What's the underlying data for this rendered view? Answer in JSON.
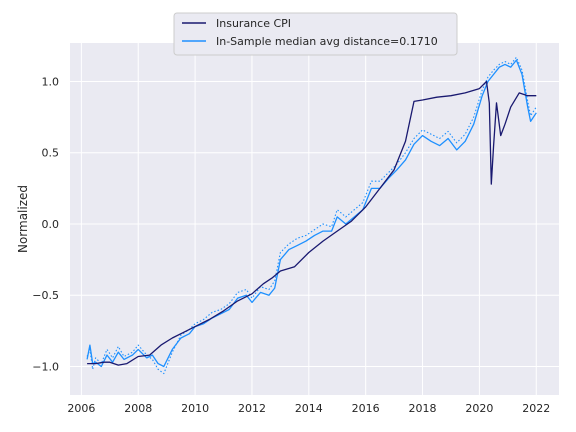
{
  "chart_data": {
    "type": "line",
    "title": "",
    "xlabel": "",
    "ylabel": "Normalized",
    "xlim": [
      2005.6,
      2022.8
    ],
    "ylim": [
      -1.2,
      1.27
    ],
    "x_ticks": [
      2006,
      2008,
      2010,
      2012,
      2014,
      2016,
      2018,
      2020,
      2022
    ],
    "x_tick_labels": [
      "2006",
      "2008",
      "2010",
      "2012",
      "2014",
      "2016",
      "2018",
      "2020",
      "2022"
    ],
    "y_ticks": [
      -1.0,
      -0.5,
      0.0,
      0.5,
      1.0
    ],
    "y_tick_labels": [
      "−1.0",
      "−0.5",
      "0.0",
      "0.5",
      "1.0"
    ],
    "grid": true,
    "legend_position": "top-center",
    "series": [
      {
        "name": "Insurance CPI",
        "color": "#191970",
        "style": "solid",
        "x": [
          2006.2,
          2006.5,
          2006.8,
          2007.0,
          2007.3,
          2007.6,
          2008.0,
          2008.4,
          2008.8,
          2009.2,
          2009.6,
          2010.0,
          2010.5,
          2011.0,
          2011.5,
          2012.0,
          2012.4,
          2012.7,
          2013.0,
          2013.5,
          2014.0,
          2014.5,
          2015.0,
          2015.5,
          2016.0,
          2016.5,
          2017.0,
          2017.4,
          2017.7,
          2018.0,
          2018.5,
          2019.0,
          2019.5,
          2020.0,
          2020.25,
          2020.35,
          2020.42,
          2020.5,
          2020.6,
          2020.75,
          2020.9,
          2021.1,
          2021.4,
          2021.7,
          2022.0
        ],
        "y": [
          -0.98,
          -0.98,
          -0.97,
          -0.97,
          -0.99,
          -0.98,
          -0.93,
          -0.92,
          -0.85,
          -0.8,
          -0.76,
          -0.72,
          -0.67,
          -0.61,
          -0.54,
          -0.49,
          -0.42,
          -0.38,
          -0.33,
          -0.3,
          -0.2,
          -0.12,
          -0.05,
          0.02,
          0.12,
          0.25,
          0.38,
          0.58,
          0.86,
          0.87,
          0.89,
          0.9,
          0.92,
          0.95,
          1.0,
          0.85,
          0.28,
          0.55,
          0.85,
          0.62,
          0.7,
          0.82,
          0.92,
          0.9,
          0.9
        ]
      },
      {
        "name": "In-Sample median avg distance=0.1710",
        "color": "#1e90ff",
        "style": "solid",
        "x": [
          2006.2,
          2006.3,
          2006.4,
          2006.5,
          2006.7,
          2006.9,
          2007.1,
          2007.3,
          2007.5,
          2007.8,
          2008.0,
          2008.3,
          2008.5,
          2008.7,
          2008.9,
          2009.2,
          2009.5,
          2009.8,
          2010.0,
          2010.3,
          2010.6,
          2010.9,
          2011.2,
          2011.5,
          2011.8,
          2012.0,
          2012.3,
          2012.6,
          2012.8,
          2013.0,
          2013.3,
          2013.6,
          2013.9,
          2014.2,
          2014.5,
          2014.8,
          2015.0,
          2015.3,
          2015.6,
          2015.9,
          2016.2,
          2016.5,
          2016.8,
          2017.1,
          2017.4,
          2017.7,
          2018.0,
          2018.3,
          2018.6,
          2018.9,
          2019.2,
          2019.5,
          2019.8,
          2020.1,
          2020.3,
          2020.5,
          2020.7,
          2020.9,
          2021.1,
          2021.3,
          2021.5,
          2021.7,
          2021.8,
          2022.0
        ],
        "y": [
          -0.95,
          -0.85,
          -0.98,
          -0.97,
          -1.0,
          -0.92,
          -0.97,
          -0.9,
          -0.95,
          -0.92,
          -0.88,
          -0.94,
          -0.92,
          -0.98,
          -1.0,
          -0.88,
          -0.8,
          -0.77,
          -0.72,
          -0.7,
          -0.66,
          -0.63,
          -0.6,
          -0.52,
          -0.5,
          -0.55,
          -0.48,
          -0.5,
          -0.45,
          -0.25,
          -0.18,
          -0.15,
          -0.12,
          -0.08,
          -0.05,
          -0.05,
          0.05,
          0.0,
          0.05,
          0.1,
          0.25,
          0.25,
          0.32,
          0.38,
          0.45,
          0.56,
          0.62,
          0.58,
          0.55,
          0.6,
          0.52,
          0.58,
          0.7,
          0.9,
          1.0,
          1.05,
          1.1,
          1.12,
          1.1,
          1.15,
          1.05,
          0.82,
          0.72,
          0.78
        ]
      },
      {
        "name": "",
        "color": "#1e90ff",
        "style": "dotted",
        "x": [
          2006.2,
          2006.3,
          2006.4,
          2006.5,
          2006.7,
          2006.9,
          2007.1,
          2007.3,
          2007.5,
          2007.8,
          2008.0,
          2008.3,
          2008.5,
          2008.7,
          2008.9,
          2009.2,
          2009.5,
          2009.8,
          2010.0,
          2010.3,
          2010.6,
          2010.9,
          2011.2,
          2011.5,
          2011.8,
          2012.0,
          2012.3,
          2012.6,
          2012.8,
          2013.0,
          2013.3,
          2013.6,
          2013.9,
          2014.2,
          2014.5,
          2014.8,
          2015.0,
          2015.3,
          2015.6,
          2015.9,
          2016.2,
          2016.5,
          2016.8,
          2017.1,
          2017.4,
          2017.7,
          2018.0,
          2018.3,
          2018.6,
          2018.9,
          2019.2,
          2019.5,
          2019.8,
          2020.1,
          2020.3,
          2020.5,
          2020.7,
          2020.9,
          2021.1,
          2021.3,
          2021.5,
          2021.7,
          2021.8,
          2022.0
        ],
        "y": [
          -0.93,
          -0.88,
          -1.02,
          -0.94,
          -0.98,
          -0.88,
          -0.94,
          -0.86,
          -0.93,
          -0.9,
          -0.85,
          -0.92,
          -0.95,
          -1.02,
          -1.05,
          -0.9,
          -0.78,
          -0.74,
          -0.7,
          -0.67,
          -0.62,
          -0.6,
          -0.56,
          -0.48,
          -0.46,
          -0.52,
          -0.44,
          -0.46,
          -0.4,
          -0.2,
          -0.14,
          -0.1,
          -0.08,
          -0.04,
          0.0,
          -0.02,
          0.1,
          0.05,
          0.1,
          0.15,
          0.3,
          0.3,
          0.36,
          0.42,
          0.5,
          0.6,
          0.66,
          0.63,
          0.6,
          0.65,
          0.57,
          0.63,
          0.75,
          0.94,
          1.03,
          1.08,
          1.12,
          1.14,
          1.12,
          1.17,
          1.08,
          0.86,
          0.76,
          0.82
        ]
      }
    ]
  }
}
